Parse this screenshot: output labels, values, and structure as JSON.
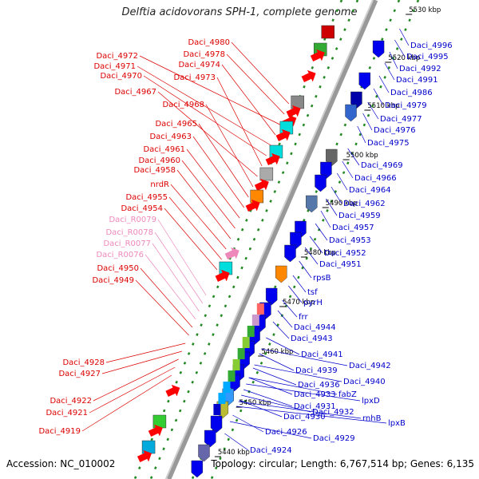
{
  "title": "Delftia acidovorans SPH-1, complete genome",
  "footer": {
    "accession": "Accession: NC_010002",
    "topology": "Topology: circular; Length: 6,767,514 bp; Genes: 6,135"
  },
  "colors": {
    "left_label": "#dd0000",
    "rna_label": "#ee88bb",
    "right_label": "#0000cc",
    "backbone": "#999999",
    "tick": "#228822"
  },
  "kbp_marks": [
    "5440 kbp",
    "5450 kbp",
    "5460 kbp",
    "5470 kbp",
    "5480 kbp",
    "5490 kbp",
    "5500 kbp",
    "5510 kbp",
    "5520 kbp",
    "5530 kbp"
  ],
  "left_labels": [
    {
      "text": "Daci_4980",
      "kind": "gene"
    },
    {
      "text": "Daci_4978",
      "kind": "gene"
    },
    {
      "text": "Daci_4972",
      "kind": "gene"
    },
    {
      "text": "Daci_4974",
      "kind": "gene"
    },
    {
      "text": "Daci_4971",
      "kind": "gene"
    },
    {
      "text": "Daci_4970",
      "kind": "gene"
    },
    {
      "text": "Daci_4973",
      "kind": "gene"
    },
    {
      "text": "Daci_4967",
      "kind": "gene"
    },
    {
      "text": "Daci_4968",
      "kind": "gene"
    },
    {
      "text": "Daci_4965",
      "kind": "gene"
    },
    {
      "text": "Daci_4963",
      "kind": "gene"
    },
    {
      "text": "Daci_4961",
      "kind": "gene"
    },
    {
      "text": "Daci_4960",
      "kind": "gene"
    },
    {
      "text": "Daci_4958",
      "kind": "gene"
    },
    {
      "text": "nrdR",
      "kind": "gene"
    },
    {
      "text": "Daci_4955",
      "kind": "gene"
    },
    {
      "text": "Daci_4954",
      "kind": "gene"
    },
    {
      "text": "Daci_R0079",
      "kind": "rna"
    },
    {
      "text": "Daci_R0078",
      "kind": "rna"
    },
    {
      "text": "Daci_R0077",
      "kind": "rna"
    },
    {
      "text": "Daci_R0076",
      "kind": "rna"
    },
    {
      "text": "Daci_4950",
      "kind": "gene"
    },
    {
      "text": "Daci_4949",
      "kind": "gene"
    },
    {
      "text": "Daci_4928",
      "kind": "gene"
    },
    {
      "text": "Daci_4927",
      "kind": "gene"
    },
    {
      "text": "Daci_4922",
      "kind": "gene"
    },
    {
      "text": "Daci_4921",
      "kind": "gene"
    },
    {
      "text": "Daci_4919",
      "kind": "gene"
    }
  ],
  "right_labels": [
    {
      "text": "Daci_4996"
    },
    {
      "text": "Daci_4995"
    },
    {
      "text": "Daci_4992"
    },
    {
      "text": "Daci_4991"
    },
    {
      "text": "Daci_4986"
    },
    {
      "text": "Daci_4979"
    },
    {
      "text": "Daci_4977"
    },
    {
      "text": "Daci_4976"
    },
    {
      "text": "Daci_4975"
    },
    {
      "text": "Daci_4969"
    },
    {
      "text": "Daci_4966"
    },
    {
      "text": "Daci_4964"
    },
    {
      "text": "Daci_4962"
    },
    {
      "text": "Daci_4959"
    },
    {
      "text": "Daci_4957"
    },
    {
      "text": "Daci_4953"
    },
    {
      "text": "Daci_4952"
    },
    {
      "text": "Daci_4951"
    },
    {
      "text": "rpsB"
    },
    {
      "text": "tsf"
    },
    {
      "text": "pyrH"
    },
    {
      "text": "frr"
    },
    {
      "text": "Daci_4944"
    },
    {
      "text": "Daci_4943"
    },
    {
      "text": "Daci_4941"
    },
    {
      "text": "Daci_4942"
    },
    {
      "text": "Daci_4939"
    },
    {
      "text": "Daci_4940"
    },
    {
      "text": "Daci_4936"
    },
    {
      "text": "Daci_4933"
    },
    {
      "text": "fabZ"
    },
    {
      "text": "lpxD"
    },
    {
      "text": "Daci_4931"
    },
    {
      "text": "Daci_4932"
    },
    {
      "text": "Daci_4930"
    },
    {
      "text": "rnhB"
    },
    {
      "text": "lpxB"
    },
    {
      "text": "Daci_4926"
    },
    {
      "text": "Daci_4929"
    },
    {
      "text": "Daci_4924"
    }
  ]
}
